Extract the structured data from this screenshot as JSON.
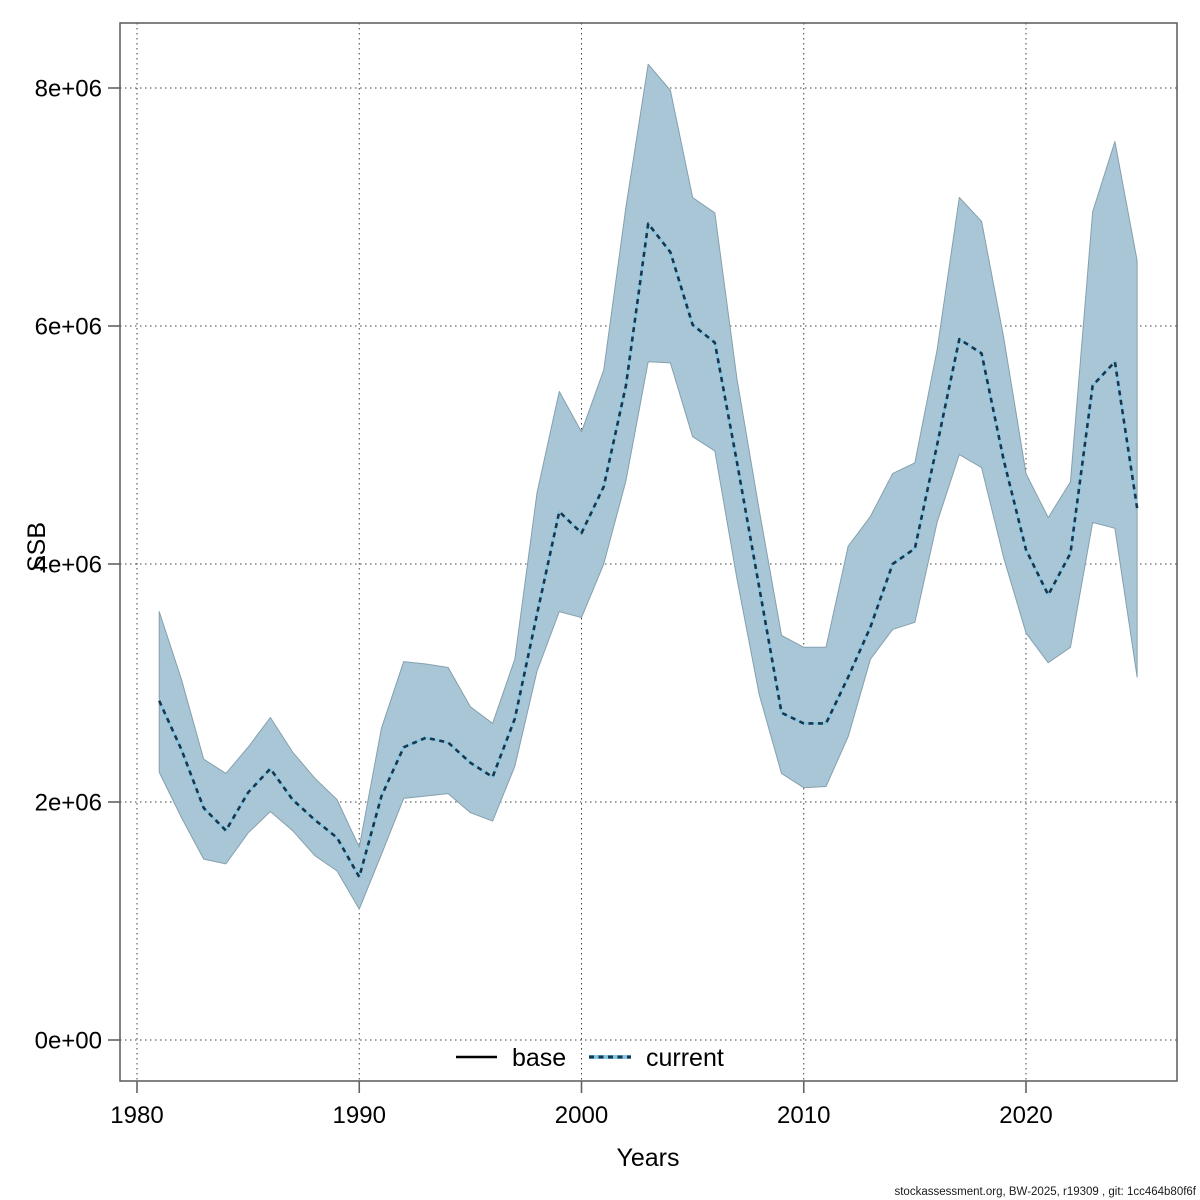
{
  "colors": {
    "band_fill": "#a9c6d6",
    "band_border": "#85a0ae",
    "current_line_dark": "#16384e",
    "current_line_light": "#85c6e4",
    "base_line": "#000000",
    "frame": "#636363",
    "grid": "#404040",
    "background": "#ffffff"
  },
  "legend": {
    "items": [
      {
        "label": "base",
        "style": "solid",
        "color": "#000000"
      },
      {
        "label": "current",
        "style": "dotted",
        "color": "#16384e"
      }
    ],
    "position": "bottom-center-inside"
  },
  "footer": {
    "text": "stockassessment.org, BW-2025, r19309 , git: 1cc464b80f6f"
  },
  "chart_data": {
    "type": "line",
    "title": "",
    "xlabel": "Years",
    "ylabel": "SSB",
    "grid": "dotted",
    "xlim": [
      1979.2,
      2026.8
    ],
    "ylim": [
      0,
      8600000
    ],
    "x_ticks": [
      1980,
      1990,
      2000,
      2010,
      2020
    ],
    "y_ticks": [
      {
        "value": 0,
        "label": "0e+00"
      },
      {
        "value": 2000000,
        "label": "2e+06"
      },
      {
        "value": 4000000,
        "label": "4e+06"
      },
      {
        "value": 6000000,
        "label": "6e+06"
      },
      {
        "value": 8000000,
        "label": "8e+06"
      }
    ],
    "x": [
      1981,
      1982,
      1983,
      1984,
      1985,
      1986,
      1987,
      1988,
      1989,
      1990,
      1991,
      1992,
      1993,
      1994,
      1995,
      1996,
      1997,
      1998,
      1999,
      2000,
      2001,
      2002,
      2003,
      2004,
      2005,
      2006,
      2007,
      2008,
      2009,
      2010,
      2011,
      2012,
      2013,
      2014,
      2015,
      2016,
      2017,
      2018,
      2019,
      2020,
      2021,
      2022,
      2023,
      2024,
      2025
    ],
    "series": [
      {
        "name": "current",
        "values": [
          2850000,
          2440000,
          1950000,
          1760000,
          2080000,
          2280000,
          2020000,
          1850000,
          1700000,
          1370000,
          2050000,
          2460000,
          2540000,
          2500000,
          2330000,
          2210000,
          2700000,
          3580000,
          4440000,
          4260000,
          4650000,
          5500000,
          6860000,
          6620000,
          6010000,
          5860000,
          4850000,
          3800000,
          2750000,
          2660000,
          2660000,
          3050000,
          3470000,
          4000000,
          4130000,
          5000000,
          5890000,
          5770000,
          4870000,
          4120000,
          3740000,
          4090000,
          5500000,
          5700000,
          4470000
        ]
      }
    ],
    "ribbon": {
      "name": "confidence-interval",
      "series": "current",
      "lo": [
        2250000,
        1870000,
        1520000,
        1480000,
        1740000,
        1920000,
        1760000,
        1550000,
        1420000,
        1100000,
        1560000,
        2030000,
        2050000,
        2070000,
        1910000,
        1840000,
        2300000,
        3100000,
        3600000,
        3550000,
        4000000,
        4700000,
        5700000,
        5690000,
        5070000,
        4950000,
        3870000,
        2900000,
        2240000,
        2120000,
        2130000,
        2550000,
        3200000,
        3450000,
        3510000,
        4350000,
        4920000,
        4810000,
        4050000,
        3420000,
        3170000,
        3300000,
        4350000,
        4300000,
        3050000
      ],
      "hi": [
        3600000,
        3030000,
        2360000,
        2240000,
        2460000,
        2710000,
        2420000,
        2200000,
        2020000,
        1620000,
        2620000,
        3180000,
        3160000,
        3130000,
        2800000,
        2660000,
        3200000,
        4600000,
        5450000,
        5110000,
        5630000,
        7000000,
        8200000,
        7980000,
        7080000,
        6950000,
        5550000,
        4450000,
        3400000,
        3300000,
        3300000,
        4150000,
        4400000,
        4760000,
        4850000,
        5800000,
        7080000,
        6880000,
        5900000,
        4760000,
        4390000,
        4690000,
        6960000,
        7550000,
        6550000
      ]
    }
  }
}
